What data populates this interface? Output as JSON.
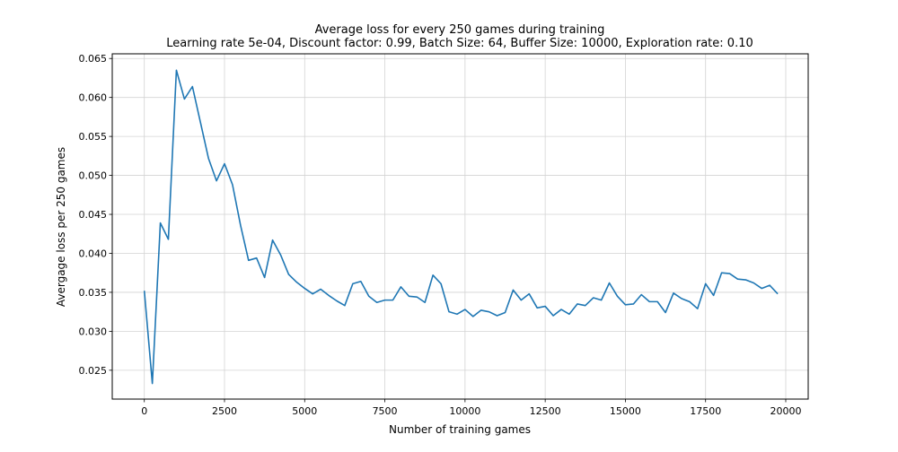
{
  "chart_data": {
    "type": "line",
    "title": "Average loss for every 250 games during training",
    "subtitle": "Learning rate 5e-04, Discount factor: 0.99, Batch Size: 64, Buffer Size: 10000, Exploration rate: 0.10",
    "xlabel": "Number of training games",
    "ylabel": "Avergage loss per 250 games",
    "xlim": [
      -1000,
      20700
    ],
    "ylim": [
      0.0213,
      0.0656
    ],
    "xticks": [
      0,
      2500,
      5000,
      7500,
      10000,
      12500,
      15000,
      17500,
      20000
    ],
    "xtick_labels": [
      "0",
      "2500",
      "5000",
      "7500",
      "10000",
      "12500",
      "15000",
      "17500",
      "20000"
    ],
    "yticks": [
      0.025,
      0.03,
      0.035,
      0.04,
      0.045,
      0.05,
      0.055,
      0.06,
      0.065
    ],
    "ytick_labels": [
      "0.025",
      "0.030",
      "0.035",
      "0.040",
      "0.045",
      "0.050",
      "0.055",
      "0.060",
      "0.065"
    ],
    "grid": true,
    "color": "#1f77b4",
    "x": [
      0,
      250,
      500,
      750,
      1000,
      1250,
      1500,
      1750,
      2000,
      2250,
      2500,
      2750,
      3000,
      3250,
      3500,
      3750,
      4000,
      4250,
      4500,
      4750,
      5000,
      5250,
      5500,
      5750,
      6000,
      6250,
      6500,
      6750,
      7000,
      7250,
      7500,
      7750,
      8000,
      8250,
      8500,
      8750,
      9000,
      9250,
      9500,
      9750,
      10000,
      10250,
      10500,
      10750,
      11000,
      11250,
      11500,
      11750,
      12000,
      12250,
      12500,
      12750,
      13000,
      13250,
      13500,
      13750,
      14000,
      14250,
      14500,
      14750,
      15000,
      15250,
      15500,
      15750,
      16000,
      16250,
      16500,
      16750,
      17000,
      17250,
      17500,
      17750,
      18000,
      18250,
      18500,
      18750,
      19000,
      19250,
      19500,
      19750
    ],
    "series": [
      {
        "values": [
          0.0352,
          0.0233,
          0.0439,
          0.0418,
          0.0635,
          0.0598,
          0.0614,
          0.0568,
          0.0522,
          0.0493,
          0.0515,
          0.0488,
          0.0436,
          0.0391,
          0.0394,
          0.0369,
          0.0417,
          0.0398,
          0.0373,
          0.0363,
          0.0355,
          0.0348,
          0.0354,
          0.0346,
          0.0339,
          0.0333,
          0.0361,
          0.0364,
          0.0345,
          0.0337,
          0.034,
          0.034,
          0.0357,
          0.0345,
          0.0344,
          0.0337,
          0.0372,
          0.0361,
          0.0325,
          0.0322,
          0.0328,
          0.0319,
          0.0327,
          0.0325,
          0.032,
          0.0324,
          0.0353,
          0.034,
          0.0348,
          0.033,
          0.0332,
          0.032,
          0.0328,
          0.0322,
          0.0335,
          0.0333,
          0.0343,
          0.034,
          0.0362,
          0.0345,
          0.0334,
          0.0335,
          0.0347,
          0.0338,
          0.0338,
          0.0324,
          0.0349,
          0.0342,
          0.0338,
          0.0329,
          0.0361,
          0.0346,
          0.0375,
          0.0374,
          0.0367,
          0.0366,
          0.0362,
          0.0355,
          0.0359,
          0.0348
        ]
      }
    ]
  }
}
